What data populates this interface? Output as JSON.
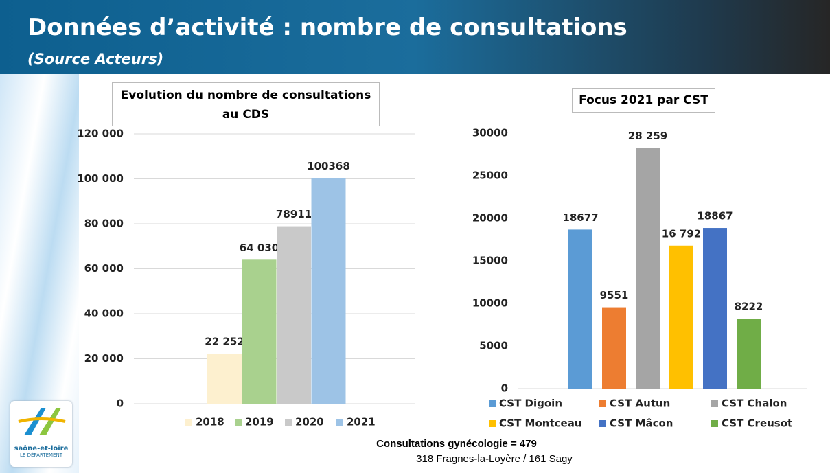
{
  "header": {
    "title": "Données d’activité : nombre de consultations",
    "subtitle": "(Source Acteurs)"
  },
  "logo": {
    "name": "saône-et-loire",
    "tagline": "LE DÉPARTEMENT"
  },
  "footer": {
    "title": "Consultations gynécologie = 479",
    "detail": "318 Fragnes-la-Loyère / 161 Sagy"
  },
  "chart_data": [
    {
      "type": "bar",
      "title": "Evolution du nombre de consultations au CDS",
      "categories": [
        null
      ],
      "series": [
        {
          "name": "2018",
          "color": "#fdf0cf",
          "values": [
            22252
          ],
          "value_labels": [
            "22 252"
          ]
        },
        {
          "name": "2019",
          "color": "#a9d18e",
          "values": [
            64030
          ],
          "value_labels": [
            "64 030"
          ]
        },
        {
          "name": "2020",
          "color": "#c9c9c9",
          "values": [
            78911
          ]
        },
        {
          "name": "2021",
          "color": "#9dc3e6",
          "values": [
            100368
          ]
        }
      ],
      "ylim": [
        0,
        120000
      ],
      "yticks": [
        0,
        {
          "value": 20000,
          "label": "20 000"
        },
        {
          "value": 40000,
          "label": "40 000"
        },
        {
          "value": 60000,
          "label": "60 000"
        },
        {
          "value": 80000,
          "label": "80 000"
        },
        {
          "value": 100000,
          "label": "100 000"
        },
        {
          "value": 120000,
          "label": "120 000"
        }
      ],
      "grid": true,
      "legend": "bottom"
    },
    {
      "type": "bar",
      "title": "Focus 2021 par CST",
      "categories": [
        null
      ],
      "series": [
        {
          "name": "CST Digoin",
          "color": "#5b9bd5",
          "values": [
            18677
          ]
        },
        {
          "name": "CST Autun",
          "color": "#ed7d31",
          "values": [
            9551
          ]
        },
        {
          "name": "CST Chalon",
          "color": "#a5a5a5",
          "values": [
            28259
          ],
          "value_labels": [
            "28 259"
          ]
        },
        {
          "name": "CST Montceau",
          "color": "#ffc000",
          "values": [
            16792
          ],
          "value_labels": [
            "16 792"
          ]
        },
        {
          "name": "CST Mâcon",
          "color": "#4472c4",
          "values": [
            18867
          ]
        },
        {
          "name": "CST Creusot",
          "color": "#70ad47",
          "values": [
            8222
          ]
        }
      ],
      "ylim": [
        0,
        30000
      ],
      "yticks": [
        0,
        5000,
        10000,
        15000,
        20000,
        25000,
        30000
      ],
      "grid": false,
      "legend": "bottom"
    }
  ]
}
